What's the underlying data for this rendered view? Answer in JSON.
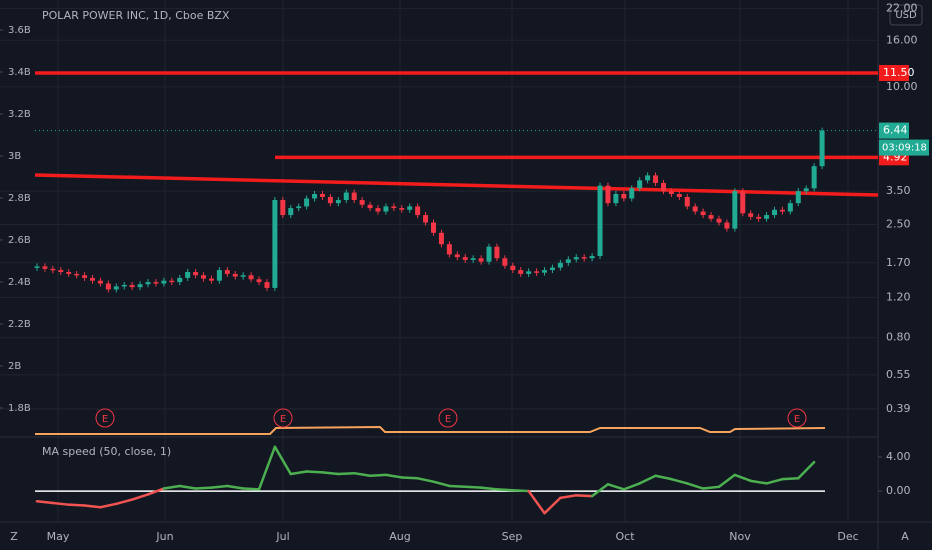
{
  "chart_data": {
    "type": "candlestick",
    "title": "POLAR POWER INC, 1D, Cboe BZX",
    "currency": "USD",
    "close": [
      1.64,
      1.6,
      1.58,
      1.55,
      1.52,
      1.5,
      1.46,
      1.42,
      1.38,
      1.3,
      1.34,
      1.36,
      1.33,
      1.37,
      1.4,
      1.38,
      1.42,
      1.4,
      1.46,
      1.55,
      1.5,
      1.45,
      1.42,
      1.58,
      1.52,
      1.48,
      1.5,
      1.44,
      1.4,
      1.32,
      3.2,
      2.75,
      2.95,
      3.0,
      3.25,
      3.4,
      3.3,
      3.1,
      3.2,
      3.45,
      3.2,
      3.05,
      2.95,
      2.85,
      3.0,
      2.95,
      2.9,
      3.0,
      2.75,
      2.55,
      2.3,
      2.05,
      1.85,
      1.8,
      1.75,
      1.78,
      1.72,
      2.0,
      1.78,
      1.65,
      1.58,
      1.52,
      1.56,
      1.54,
      1.58,
      1.62,
      1.7,
      1.76,
      1.8,
      1.78,
      1.82,
      3.7,
      3.1,
      3.4,
      3.25,
      3.6,
      3.9,
      4.1,
      3.8,
      3.5,
      3.4,
      3.3,
      3.0,
      2.85,
      2.75,
      2.65,
      2.55,
      2.4,
      3.5,
      2.8,
      2.7,
      2.65,
      2.75,
      2.9,
      2.85,
      3.1,
      3.5,
      3.6,
      4.5,
      6.44
    ],
    "up_color": "#22ab94",
    "down_color": "#f23645",
    "log_scale": true,
    "ylim": [
      0.3,
      24
    ],
    "yticks": [
      {
        "value": 22,
        "label": "22.00"
      },
      {
        "value": 16,
        "label": "16.00"
      },
      {
        "value": 10,
        "label": "10.00"
      },
      {
        "value": 3.5,
        "label": "3.50"
      },
      {
        "value": 2.5,
        "label": "2.50"
      },
      {
        "value": 1.7,
        "label": "1.70"
      },
      {
        "value": 1.2,
        "label": "1.20"
      },
      {
        "value": 0.8,
        "label": "0.80"
      },
      {
        "value": 0.55,
        "label": "0.55"
      },
      {
        "value": 0.39,
        "label": "0.39"
      }
    ],
    "y2lim": [
      1671000000,
      3743000000
    ],
    "y2ticks": [
      {
        "value": 3600000000,
        "label": "3.6B"
      },
      {
        "value": 3400000000,
        "label": "3.4B"
      },
      {
        "value": 3200000000,
        "label": "3.2B"
      },
      {
        "value": 3000000000,
        "label": "3B"
      },
      {
        "value": 2800000000,
        "label": "2.8B"
      },
      {
        "value": 2600000000,
        "label": "2.6B"
      },
      {
        "value": 2400000000,
        "label": "2.4B"
      },
      {
        "value": 2200000000,
        "label": "2.2B"
      },
      {
        "value": 2000000000,
        "label": "2B"
      },
      {
        "value": 1800000000,
        "label": "1.8B"
      }
    ],
    "levels": [
      {
        "value": 11.5,
        "label": "11.50"
      },
      {
        "value": 4.92,
        "label": "4.92"
      }
    ],
    "level_color": "#f21c1c",
    "last_price": {
      "value": 6.44,
      "label": "6.44"
    },
    "countdown": "03:09:18",
    "earnings_marker": "E",
    "x_labels": [
      "May",
      "Jun",
      "Jul",
      "Aug",
      "Sep",
      "Oct",
      "Nov",
      "Dec"
    ],
    "grid": true,
    "indicator": {
      "name": "MA speed (50, close, 1)",
      "values": [
        -1.2,
        -1.4,
        -1.6,
        -1.7,
        -1.9,
        -1.5,
        -1.0,
        -0.4,
        0.3,
        0.6,
        0.3,
        0.4,
        0.6,
        0.3,
        0.2,
        5.2,
        2.0,
        2.3,
        2.2,
        2.0,
        2.1,
        1.8,
        1.9,
        1.6,
        1.5,
        1.1,
        0.6,
        0.5,
        0.4,
        0.2,
        0.1,
        0.0,
        -2.6,
        -0.8,
        -0.5,
        -0.6,
        0.8,
        0.2,
        0.9,
        1.8,
        1.4,
        0.9,
        0.3,
        0.5,
        1.9,
        1.2,
        0.9,
        1.4,
        1.5,
        3.4
      ],
      "positive_color": "#4caf50",
      "negative_color": "#f05350",
      "ylim": [
        -3.4,
        6.0
      ],
      "yticks": [
        {
          "value": 4,
          "label": "4.00"
        },
        {
          "value": 0,
          "label": "0.00"
        }
      ]
    },
    "left_tool": "Z",
    "right_tool": "A"
  }
}
